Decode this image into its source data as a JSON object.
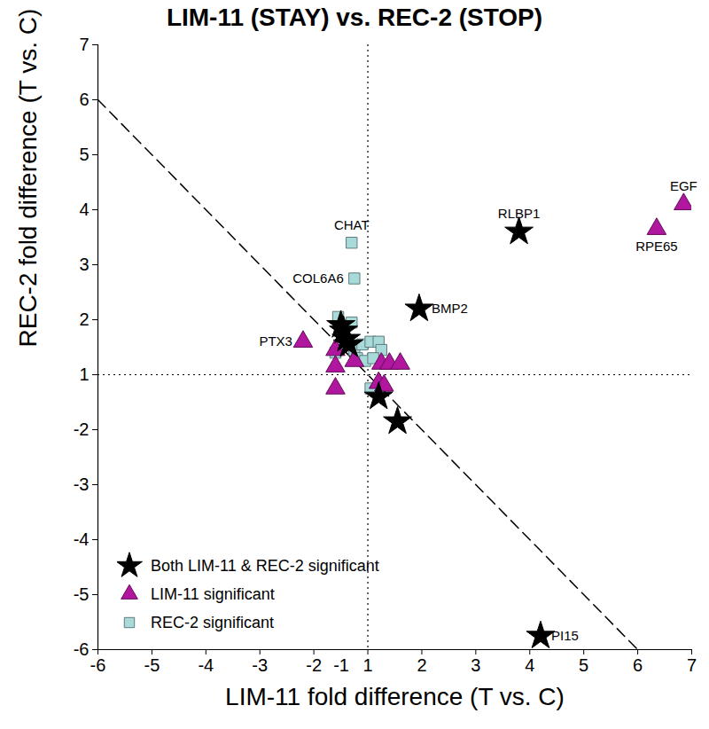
{
  "chart_data": {
    "type": "scatter",
    "title": "LIM-11 (STAY) vs. REC-2 (STOP)",
    "x_label": "LIM-11 fold difference (T vs. C)",
    "y_label": "REC-2 fold difference (T vs. C)",
    "xlim": [
      -6,
      7
    ],
    "ylim": [
      -6,
      7
    ],
    "xticks": [
      -6,
      -5,
      -4,
      -3,
      -2,
      -1,
      1,
      2,
      3,
      4,
      5,
      6,
      7
    ],
    "yticks": [
      -6,
      -5,
      -4,
      -3,
      -2,
      1,
      2,
      3,
      4,
      5,
      6,
      7
    ],
    "legend": "bottom-left",
    "series": [
      {
        "name": "REC-2 significant",
        "color": "#a8dada",
        "marker": "square",
        "points": [
          {
            "x": -1.3,
            "y": 3.4,
            "label": "CHAT"
          },
          {
            "x": -1.25,
            "y": 2.75,
            "label": "COL6A6"
          },
          {
            "x": -1.55,
            "y": 2.05
          },
          {
            "x": -1.3,
            "y": 1.95
          },
          {
            "x": -1.25,
            "y": 1.45
          },
          {
            "x": -1.1,
            "y": 1.55
          },
          {
            "x": 1.05,
            "y": 1.6
          },
          {
            "x": 1.2,
            "y": 1.6
          },
          {
            "x": 1.25,
            "y": 1.45
          },
          {
            "x": -1.2,
            "y": 1.3
          },
          {
            "x": -1.05,
            "y": 1.25
          },
          {
            "x": 1.1,
            "y": 1.3
          },
          {
            "x": -1.6,
            "y": 1.4
          },
          {
            "x": 1.05,
            "y": -1.25
          }
        ]
      },
      {
        "name": "LIM-11 significant",
        "color": "#b0179e",
        "marker": "triangle",
        "points": [
          {
            "x": 6.85,
            "y": 4.1,
            "label": "EGF"
          },
          {
            "x": 6.35,
            "y": 3.65,
            "label": "RPE65"
          },
          {
            "x": -2.2,
            "y": 1.6,
            "label": "PTX3"
          },
          {
            "x": -1.6,
            "y": 1.45
          },
          {
            "x": -1.6,
            "y": 1.15
          },
          {
            "x": -1.6,
            "y": -1.25
          },
          {
            "x": -1.25,
            "y": 1.25
          },
          {
            "x": 1.25,
            "y": 1.2
          },
          {
            "x": 1.4,
            "y": 1.2
          },
          {
            "x": 1.6,
            "y": 1.2
          },
          {
            "x": 1.2,
            "y": -1.15
          },
          {
            "x": 1.3,
            "y": -1.2
          }
        ]
      },
      {
        "name": "Both LIM-11 & REC-2 significant",
        "color": "#000000",
        "marker": "star",
        "points": [
          {
            "x": 3.8,
            "y": 3.6,
            "label": "RLBP1"
          },
          {
            "x": 1.95,
            "y": 2.2,
            "label": "BMP2"
          },
          {
            "x": 4.2,
            "y": -5.75,
            "label": "PI15"
          },
          {
            "x": -1.5,
            "y": 1.9
          },
          {
            "x": -1.45,
            "y": 1.8
          },
          {
            "x": -1.4,
            "y": 1.65
          },
          {
            "x": -1.35,
            "y": 1.55
          },
          {
            "x": 1.2,
            "y": -1.4
          },
          {
            "x": 1.55,
            "y": -1.85
          }
        ]
      }
    ],
    "reference_lines": [
      {
        "x": 1,
        "line_style": "dotted"
      },
      {
        "y": 1,
        "line_style": "dotted"
      }
    ],
    "diagonal": {
      "x": [
        -6,
        6
      ],
      "y": [
        6,
        -6
      ],
      "line_style": "dashed"
    }
  }
}
